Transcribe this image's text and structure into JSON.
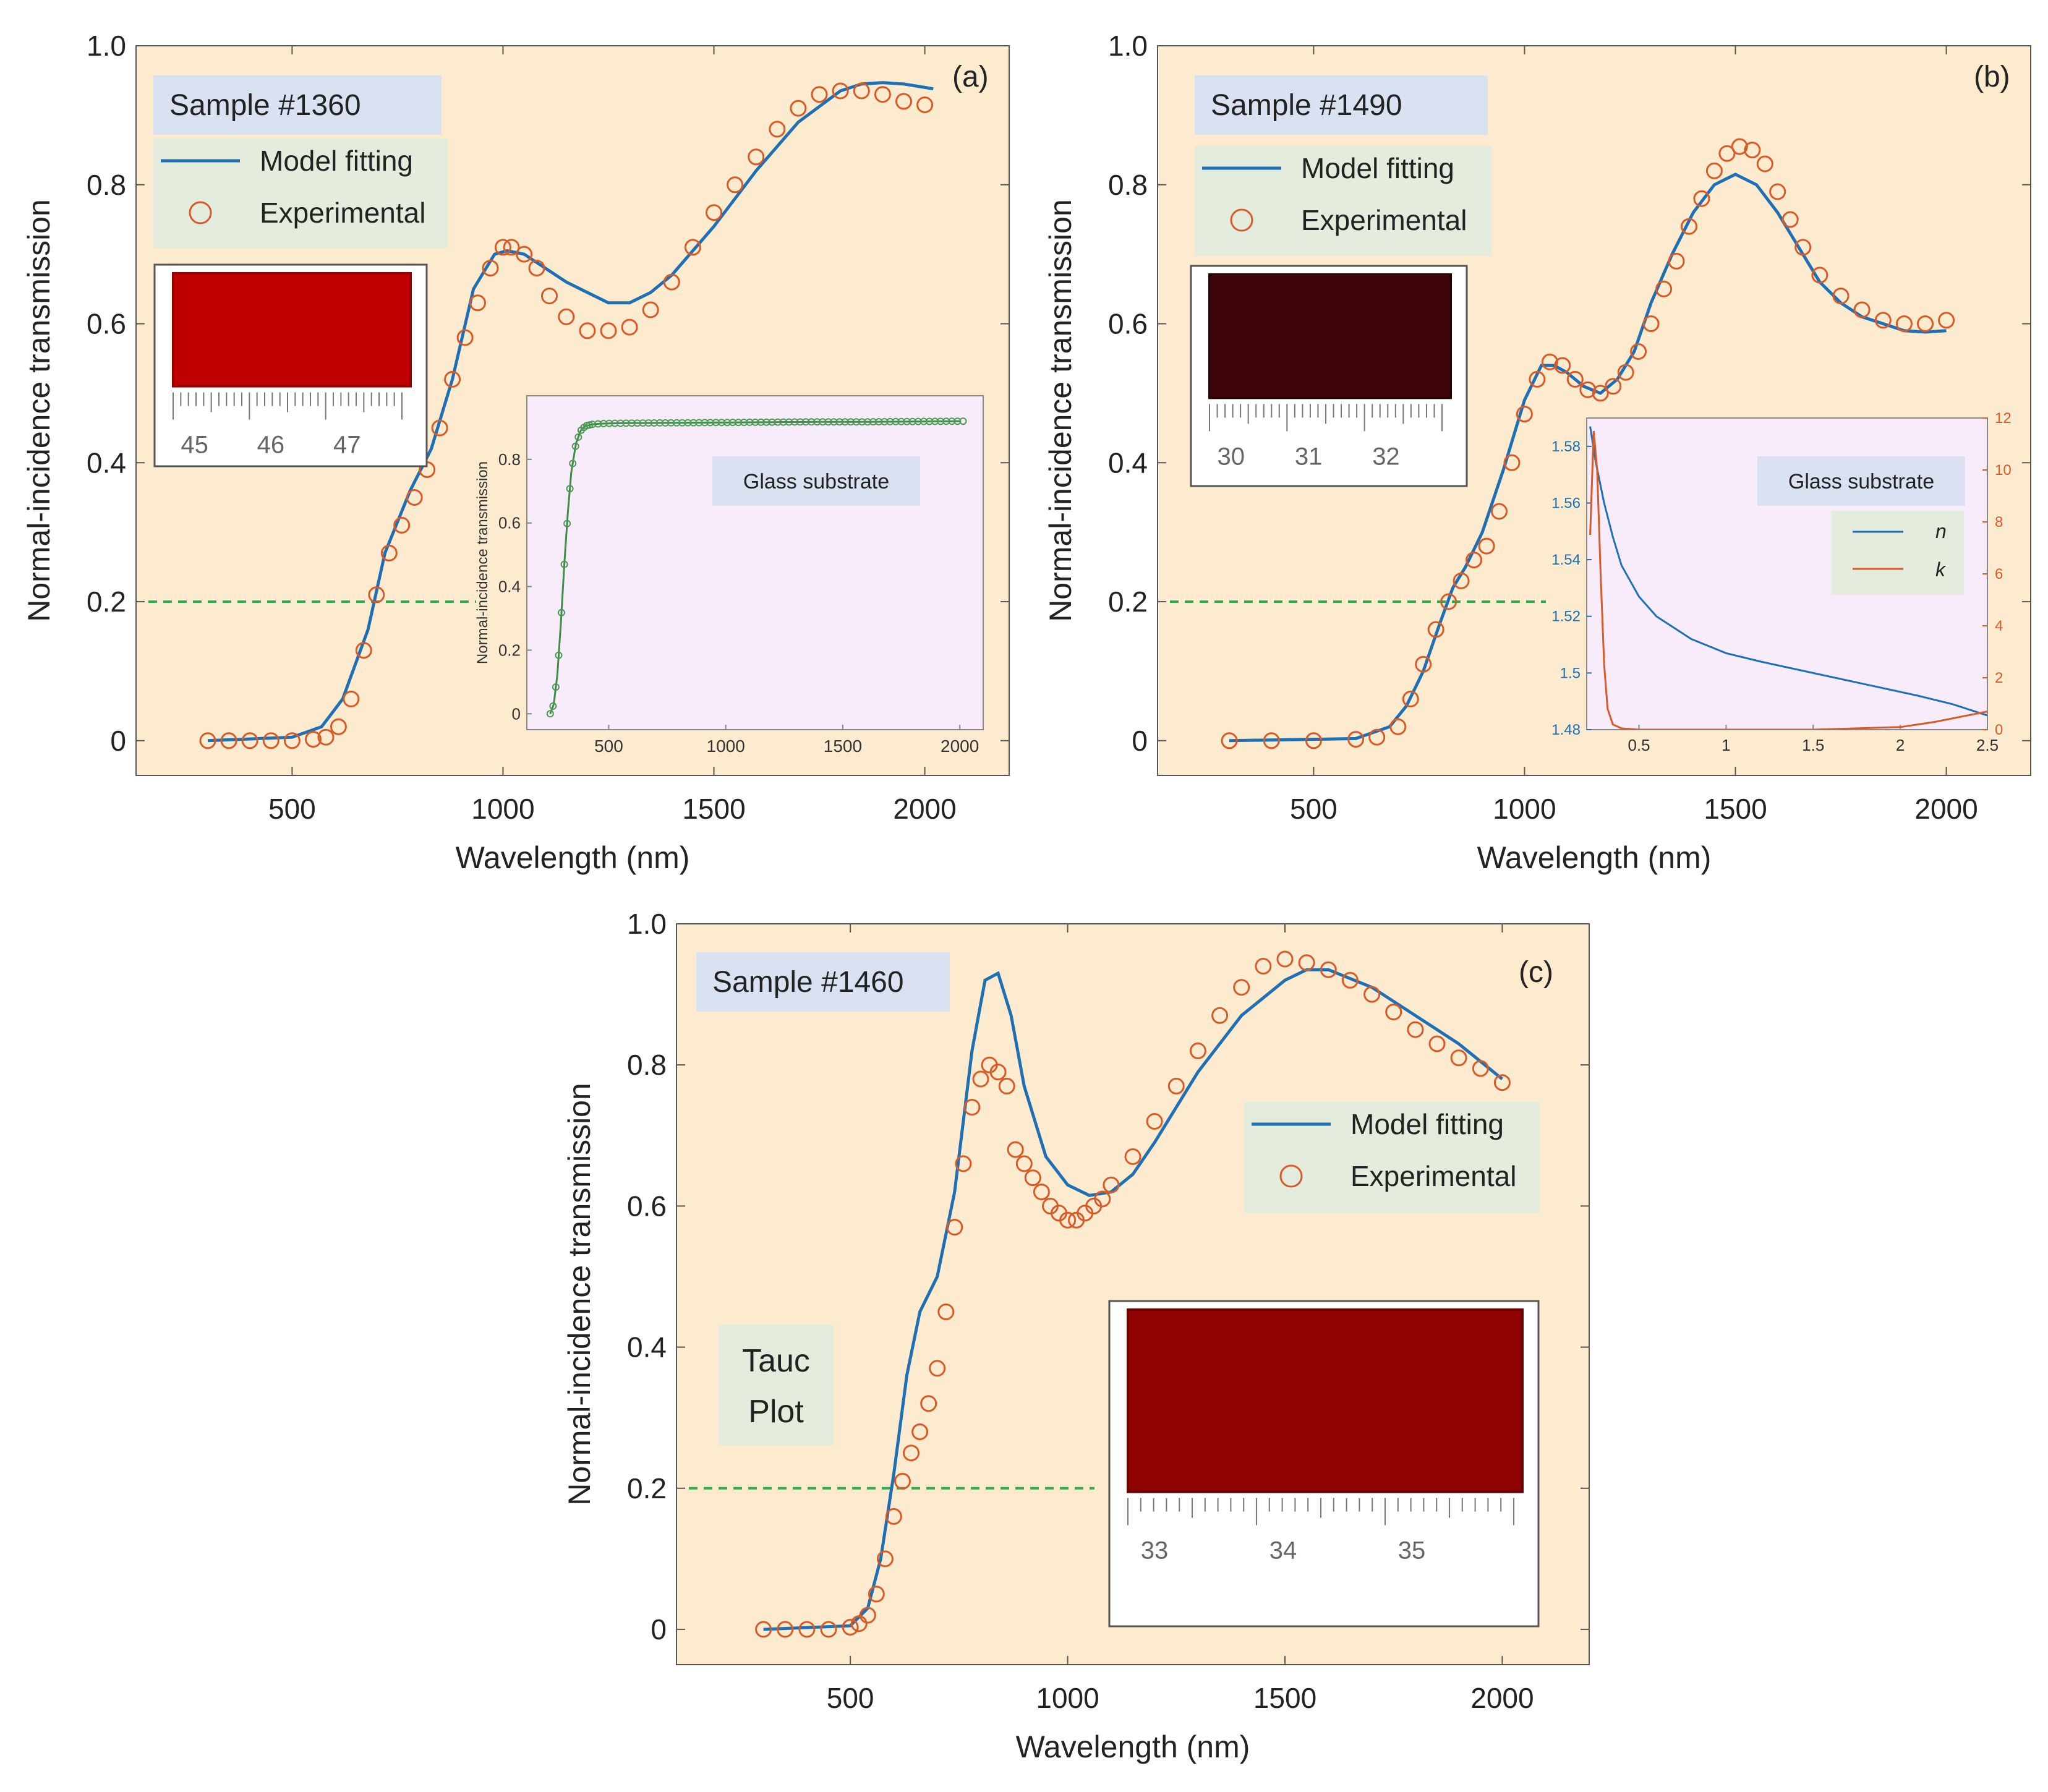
{
  "colors": {
    "plot_bg": "#fdebd0",
    "inset_bg": "#f8ecfb",
    "legend_bg": "#e3ecdd",
    "label_bg": "#dae2f1",
    "model": "#1f6fb4",
    "experimental": "#d85a27",
    "threshold": "#2bb04a",
    "glass_points": "#4a9a52"
  },
  "shared": {
    "ylabel": "Normal-incidence transmission",
    "xlabel": "Wavelength (nm)",
    "legend_model": "Model fitting",
    "legend_experimental": "Experimental",
    "threshold_value": 0.2
  },
  "chart_data": [
    {
      "type": "line",
      "panel": "(a)",
      "sample_label": "Sample #1360",
      "xlim": [
        130,
        2200
      ],
      "ylim": [
        -0.05,
        1.0
      ],
      "xticks": [
        500,
        1000,
        1500,
        2000
      ],
      "yticks": [
        0,
        0.2,
        0.4,
        0.6,
        0.8,
        1.0
      ],
      "ytick_labels": [
        "0",
        "0.2",
        "0.4",
        "0.6",
        "0.8",
        "1.0"
      ],
      "series": [
        {
          "name": "Model fitting",
          "kind": "line",
          "x": [
            300,
            500,
            570,
            620,
            680,
            720,
            780,
            830,
            880,
            930,
            980,
            1010,
            1050,
            1100,
            1150,
            1200,
            1250,
            1300,
            1350,
            1400,
            1500,
            1600,
            1700,
            1800,
            1850,
            1900,
            1950,
            2000,
            2020
          ],
          "y": [
            0.0,
            0.005,
            0.02,
            0.06,
            0.16,
            0.27,
            0.36,
            0.42,
            0.52,
            0.65,
            0.7,
            0.705,
            0.7,
            0.68,
            0.66,
            0.645,
            0.63,
            0.63,
            0.645,
            0.67,
            0.74,
            0.82,
            0.89,
            0.935,
            0.945,
            0.947,
            0.945,
            0.94,
            0.938
          ]
        },
        {
          "name": "Experimental",
          "kind": "scatter",
          "x": [
            300,
            350,
            400,
            450,
            500,
            550,
            580,
            610,
            640,
            670,
            700,
            730,
            760,
            790,
            820,
            850,
            880,
            910,
            940,
            970,
            1000,
            1020,
            1050,
            1080,
            1110,
            1150,
            1200,
            1250,
            1300,
            1350,
            1400,
            1450,
            1500,
            1550,
            1600,
            1650,
            1700,
            1750,
            1800,
            1850,
            1900,
            1950,
            2000
          ],
          "y": [
            0.0,
            0.0,
            0.0,
            0.0,
            0.0,
            0.002,
            0.005,
            0.02,
            0.06,
            0.13,
            0.21,
            0.27,
            0.31,
            0.35,
            0.39,
            0.45,
            0.52,
            0.58,
            0.63,
            0.68,
            0.71,
            0.71,
            0.7,
            0.68,
            0.64,
            0.61,
            0.59,
            0.59,
            0.595,
            0.62,
            0.66,
            0.71,
            0.76,
            0.8,
            0.84,
            0.88,
            0.91,
            0.93,
            0.935,
            0.935,
            0.93,
            0.92,
            0.915
          ]
        }
      ],
      "inset": {
        "title": "Glass substrate",
        "ylabel": "Normal-incidence transmission",
        "xlim": [
          150,
          2100
        ],
        "ylim": [
          -0.05,
          1.0
        ],
        "xticks": [
          500,
          1000,
          1500,
          2000
        ],
        "yticks": [
          0,
          0.2,
          0.4,
          0.6,
          0.8
        ],
        "ytick_labels": [
          "0",
          "0.2",
          "0.4",
          "0.6",
          "0.8"
        ],
        "x": [
          250,
          265,
          280,
          295,
          310,
          325,
          340,
          360,
          380,
          400,
          430,
          460,
          500,
          600,
          800,
          1000,
          1200,
          1400,
          1600,
          1800,
          2000
        ],
        "y": [
          0.0,
          0.03,
          0.12,
          0.28,
          0.47,
          0.63,
          0.76,
          0.85,
          0.89,
          0.905,
          0.91,
          0.912,
          0.913,
          0.914,
          0.915,
          0.916,
          0.917,
          0.918,
          0.918,
          0.919,
          0.92
        ]
      },
      "photo_ruler": [
        "45",
        "46",
        "47"
      ]
    },
    {
      "type": "line",
      "panel": "(b)",
      "sample_label": "Sample #1490",
      "xlim": [
        130,
        2200
      ],
      "ylim": [
        -0.05,
        1.0
      ],
      "xticks": [
        500,
        1000,
        1500,
        2000
      ],
      "yticks": [
        0,
        0.2,
        0.4,
        0.6,
        0.8,
        1.0
      ],
      "ytick_labels": [
        "0",
        "0.2",
        "0.4",
        "0.6",
        "0.8",
        "1.0"
      ],
      "series": [
        {
          "name": "Model fitting",
          "kind": "line",
          "x": [
            300,
            600,
            680,
            720,
            760,
            800,
            830,
            860,
            900,
            950,
            1000,
            1040,
            1070,
            1100,
            1140,
            1180,
            1220,
            1260,
            1300,
            1350,
            1400,
            1450,
            1500,
            1550,
            1600,
            1650,
            1700,
            1750,
            1800,
            1850,
            1900,
            1950,
            2000
          ],
          "y": [
            0.0,
            0.003,
            0.02,
            0.05,
            0.1,
            0.17,
            0.22,
            0.25,
            0.3,
            0.39,
            0.49,
            0.54,
            0.54,
            0.53,
            0.51,
            0.5,
            0.52,
            0.56,
            0.63,
            0.7,
            0.76,
            0.8,
            0.815,
            0.8,
            0.76,
            0.71,
            0.66,
            0.63,
            0.61,
            0.6,
            0.59,
            0.588,
            0.59
          ]
        },
        {
          "name": "Experimental",
          "kind": "scatter",
          "x": [
            300,
            400,
            500,
            600,
            650,
            700,
            730,
            760,
            790,
            820,
            850,
            880,
            910,
            940,
            970,
            1000,
            1030,
            1060,
            1090,
            1120,
            1150,
            1180,
            1210,
            1240,
            1270,
            1300,
            1330,
            1360,
            1390,
            1420,
            1450,
            1480,
            1510,
            1540,
            1570,
            1600,
            1630,
            1660,
            1700,
            1750,
            1800,
            1850,
            1900,
            1950,
            2000
          ],
          "y": [
            0.0,
            0.0,
            0.0,
            0.002,
            0.005,
            0.02,
            0.06,
            0.11,
            0.16,
            0.2,
            0.23,
            0.26,
            0.28,
            0.33,
            0.4,
            0.47,
            0.52,
            0.545,
            0.54,
            0.52,
            0.505,
            0.5,
            0.51,
            0.53,
            0.56,
            0.6,
            0.65,
            0.69,
            0.74,
            0.78,
            0.82,
            0.845,
            0.855,
            0.85,
            0.83,
            0.79,
            0.75,
            0.71,
            0.67,
            0.64,
            0.62,
            0.605,
            0.6,
            0.6,
            0.605
          ]
        }
      ],
      "inset": {
        "title": "Glass substrate",
        "xlim": [
          0.2,
          2.5
        ],
        "yleft_lim": [
          1.48,
          1.59
        ],
        "yright_lim": [
          0,
          12
        ],
        "xticks": [
          0.5,
          1,
          1.5,
          2,
          2.5
        ],
        "xtick_labels": [
          "0.5",
          "1",
          "1.5",
          "2",
          "2.5"
        ],
        "yleft_ticks": [
          1.48,
          1.5,
          1.52,
          1.54,
          1.56,
          1.58
        ],
        "yleft_tick_labels": [
          "1.48",
          "1.5",
          "1.52",
          "1.54",
          "1.56",
          "1.58"
        ],
        "yright_ticks": [
          0,
          2,
          4,
          6,
          8,
          10,
          12
        ],
        "yright_tick_labels": [
          "0",
          "2",
          "4",
          "6",
          "8",
          "10",
          "12"
        ],
        "legend_n": "n",
        "legend_k": "k",
        "n": {
          "x": [
            0.22,
            0.25,
            0.3,
            0.35,
            0.4,
            0.5,
            0.6,
            0.8,
            1.0,
            1.2,
            1.5,
            1.8,
            2.1,
            2.3,
            2.5
          ],
          "y": [
            1.587,
            1.575,
            1.56,
            1.548,
            1.538,
            1.527,
            1.52,
            1.512,
            1.507,
            1.504,
            1.5,
            1.496,
            1.492,
            1.489,
            1.485
          ]
        },
        "k": {
          "x": [
            0.22,
            0.24,
            0.26,
            0.28,
            0.3,
            0.32,
            0.35,
            0.4,
            0.5,
            1.0,
            1.5,
            2.0,
            2.2,
            2.5
          ],
          "y": [
            7.5,
            11.5,
            10.0,
            6.0,
            2.5,
            0.8,
            0.2,
            0.05,
            0.0,
            0.0,
            0.0,
            0.1,
            0.3,
            0.7
          ]
        }
      },
      "photo_ruler": [
        "30",
        "31",
        "32"
      ]
    },
    {
      "type": "line",
      "panel": "(c)",
      "sample_label": "Sample #1460",
      "annotation": [
        "Tauc",
        "Plot"
      ],
      "xlim": [
        100,
        2200
      ],
      "ylim": [
        -0.05,
        1.0
      ],
      "xticks": [
        500,
        1000,
        1500,
        2000
      ],
      "yticks": [
        0,
        0.2,
        0.4,
        0.6,
        0.8,
        1.0
      ],
      "ytick_labels": [
        "0",
        "0.2",
        "0.4",
        "0.6",
        "0.8",
        "1.0"
      ],
      "series": [
        {
          "name": "Model fitting",
          "kind": "line",
          "x": [
            300,
            500,
            540,
            570,
            600,
            630,
            660,
            700,
            740,
            780,
            810,
            840,
            870,
            900,
            950,
            1000,
            1050,
            1100,
            1150,
            1200,
            1300,
            1400,
            1500,
            1550,
            1600,
            1700,
            1800,
            1900,
            2000
          ],
          "y": [
            0.0,
            0.005,
            0.03,
            0.1,
            0.22,
            0.36,
            0.45,
            0.5,
            0.62,
            0.82,
            0.92,
            0.93,
            0.87,
            0.77,
            0.67,
            0.63,
            0.615,
            0.62,
            0.645,
            0.69,
            0.79,
            0.87,
            0.92,
            0.935,
            0.935,
            0.91,
            0.87,
            0.83,
            0.78
          ]
        },
        {
          "name": "Experimental",
          "kind": "scatter",
          "x": [
            300,
            350,
            400,
            450,
            500,
            520,
            540,
            560,
            580,
            600,
            620,
            640,
            660,
            680,
            700,
            720,
            740,
            760,
            780,
            800,
            820,
            840,
            860,
            880,
            900,
            920,
            940,
            960,
            980,
            1000,
            1020,
            1040,
            1060,
            1080,
            1100,
            1150,
            1200,
            1250,
            1300,
            1350,
            1400,
            1450,
            1500,
            1550,
            1600,
            1650,
            1700,
            1750,
            1800,
            1850,
            1900,
            1950,
            2000
          ],
          "y": [
            0.0,
            0.0,
            0.0,
            0.0,
            0.003,
            0.008,
            0.02,
            0.05,
            0.1,
            0.16,
            0.21,
            0.25,
            0.28,
            0.32,
            0.37,
            0.45,
            0.57,
            0.66,
            0.74,
            0.78,
            0.8,
            0.79,
            0.77,
            0.68,
            0.66,
            0.64,
            0.62,
            0.6,
            0.59,
            0.58,
            0.58,
            0.59,
            0.6,
            0.61,
            0.63,
            0.67,
            0.72,
            0.77,
            0.82,
            0.87,
            0.91,
            0.94,
            0.95,
            0.945,
            0.935,
            0.92,
            0.9,
            0.875,
            0.85,
            0.83,
            0.81,
            0.795,
            0.775
          ]
        }
      ],
      "photo_ruler": [
        "33",
        "34",
        "35"
      ]
    }
  ]
}
